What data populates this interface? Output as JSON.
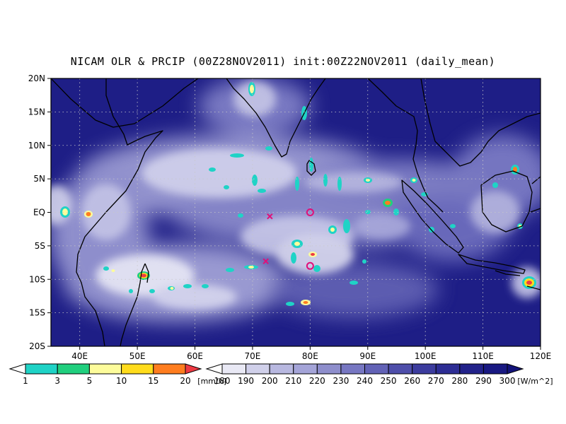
{
  "title": "NICAM OLR & PRCIP (00Z28NOV2011) init:00Z22NOV2011 (daily_mean)",
  "map": {
    "lon_range": [
      35,
      120
    ],
    "lat_range": [
      -20,
      20
    ],
    "x_ticks": [
      {
        "value": 40,
        "label": "40E"
      },
      {
        "value": 50,
        "label": "50E"
      },
      {
        "value": 60,
        "label": "60E"
      },
      {
        "value": 70,
        "label": "70E"
      },
      {
        "value": 80,
        "label": "80E"
      },
      {
        "value": 90,
        "label": "90E"
      },
      {
        "value": 100,
        "label": "100E"
      },
      {
        "value": 110,
        "label": "110E"
      },
      {
        "value": 120,
        "label": "120E"
      }
    ],
    "y_ticks": [
      {
        "value": 20,
        "label": "20N"
      },
      {
        "value": 15,
        "label": "15N"
      },
      {
        "value": 10,
        "label": "10N"
      },
      {
        "value": 5,
        "label": "5N"
      },
      {
        "value": 0,
        "label": "EQ"
      },
      {
        "value": -5,
        "label": "5S"
      },
      {
        "value": -10,
        "label": "10S"
      },
      {
        "value": -15,
        "label": "15S"
      },
      {
        "value": -20,
        "label": "20S"
      }
    ],
    "grid": "dotted",
    "markers": [
      {
        "type": "x",
        "lon": 73,
        "lat": -0.6,
        "color": "#e0107a"
      },
      {
        "type": "x",
        "lon": 72.3,
        "lat": -7.3,
        "color": "#e0107a"
      },
      {
        "type": "circle",
        "lon": 80,
        "lat": 0,
        "color": "#e0107a"
      },
      {
        "type": "circle",
        "lon": 80,
        "lat": -8,
        "color": "#e0107a"
      }
    ]
  },
  "precip_colorbar": {
    "labels": [
      "1",
      "3",
      "5",
      "10",
      "15",
      "20"
    ],
    "unit": "[mm/h]",
    "colors": [
      "#ffffff",
      "#1fd3c6",
      "#20cf7e",
      "#fdfc9b",
      "#ffdc1c",
      "#ff7d1f",
      "#ee3a43"
    ]
  },
  "olr_colorbar": {
    "labels": [
      "180",
      "190",
      "200",
      "210",
      "220",
      "230",
      "240",
      "250",
      "260",
      "270",
      "280",
      "290",
      "300"
    ],
    "unit": "[W/m^2]",
    "colors": [
      "#ffffff",
      "#e9e9f5",
      "#d0d0ea",
      "#b8b8e0",
      "#a4a4d8",
      "#8e8ecc",
      "#7777c2",
      "#6262b6",
      "#4e4eaa",
      "#3c3c9e",
      "#2d2d94",
      "#22228a",
      "#191982",
      "#13137a"
    ]
  }
}
